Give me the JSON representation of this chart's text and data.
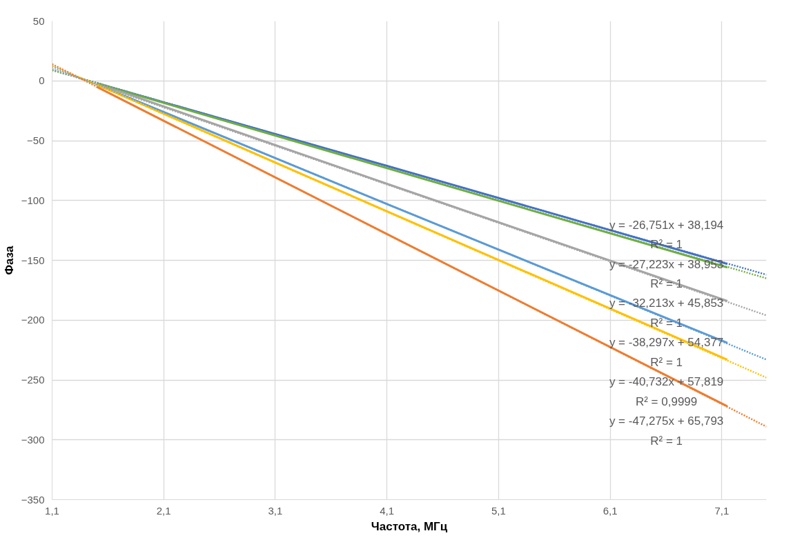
{
  "chart_data": {
    "type": "line",
    "xlabel": "Частота, МГц",
    "ylabel": "Фаза",
    "xlim": [
      1.1,
      7.5
    ],
    "xticks": [
      {
        "value": 1.1,
        "label": "1,1"
      },
      {
        "value": 2.1,
        "label": "2,1"
      },
      {
        "value": 3.1,
        "label": "3,1"
      },
      {
        "value": 4.1,
        "label": "4,1"
      },
      {
        "value": 5.1,
        "label": "5,1"
      },
      {
        "value": 6.1,
        "label": "6,1"
      },
      {
        "value": 7.1,
        "label": "7,1"
      }
    ],
    "ylim": [
      -350,
      50
    ],
    "yticks": [
      -350,
      -300,
      -250,
      -200,
      -150,
      -100,
      -50,
      0,
      50
    ],
    "grid": true,
    "marker": "none",
    "series": [
      {
        "color": "#4472c4",
        "x": [
          1.5,
          4.1,
          7.15
        ],
        "values": [
          -2,
          -71,
          -153
        ]
      },
      {
        "color": "#70ad47",
        "x": [
          1.5,
          4.1,
          7.15
        ],
        "values": [
          -2,
          -73,
          -156
        ]
      },
      {
        "color": "#a5a5a5",
        "x": [
          1.5,
          4.1,
          7.15
        ],
        "values": [
          -2,
          -86,
          -184
        ]
      },
      {
        "color": "#5b9bd5",
        "x": [
          1.5,
          4.1,
          7.15
        ],
        "values": [
          -3,
          -103,
          -219
        ]
      },
      {
        "color": "#ffc000",
        "x": [
          1.5,
          4.1,
          7.15
        ],
        "values": [
          -3,
          -109,
          -233
        ]
      },
      {
        "color": "#ed7d31",
        "x": [
          1.5,
          4.1,
          7.15
        ],
        "values": [
          -5,
          -128,
          -272
        ]
      },
      {
        "color": "#4472c4",
        "line_style": "dotted",
        "x": [
          1.1,
          7.5
        ],
        "values": [
          9,
          -162
        ]
      },
      {
        "color": "#70ad47",
        "line_style": "dotted",
        "x": [
          1.1,
          7.5
        ],
        "values": [
          9,
          -165
        ]
      },
      {
        "color": "#a5a5a5",
        "line_style": "dotted",
        "x": [
          1.1,
          7.5
        ],
        "values": [
          10,
          -196
        ]
      },
      {
        "color": "#5b9bd5",
        "line_style": "dotted",
        "x": [
          1.1,
          7.5
        ],
        "values": [
          12,
          -233
        ]
      },
      {
        "color": "#ffc000",
        "line_style": "dotted",
        "x": [
          1.1,
          7.5
        ],
        "values": [
          13,
          -248
        ]
      },
      {
        "color": "#ed7d31",
        "line_style": "dotted",
        "x": [
          1.1,
          7.5
        ],
        "values": [
          14,
          -289
        ]
      }
    ],
    "annotations": [
      "y = -26,751x + 38,194",
      "R² = 1",
      "y = -27,223x + 38,953",
      "R² = 1",
      "y = -32,213x + 45,853",
      "R² = 1",
      "y = -38,297x + 54,377",
      "R² = 1",
      "y = -40,732x + 57,819",
      "R² = 0,9999",
      "y = -47,275x + 65,793",
      "R² = 1"
    ]
  }
}
